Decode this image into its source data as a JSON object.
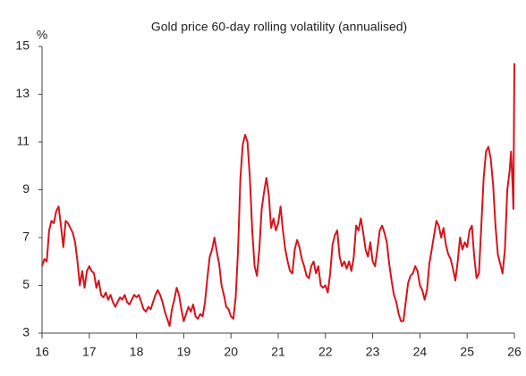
{
  "chart_data": {
    "type": "line",
    "title": "Gold price 60-day rolling volatility (annualised)",
    "y_label": "%",
    "color": "#d7141d",
    "xlim": [
      16,
      26
    ],
    "xticks": [
      16,
      17,
      18,
      19,
      20,
      21,
      22,
      23,
      24,
      25,
      26
    ],
    "ylim": [
      3,
      15
    ],
    "yticks": [
      3,
      5,
      7,
      9,
      11,
      13,
      15
    ],
    "x": [
      16.0,
      16.05,
      16.1,
      16.15,
      16.2,
      16.25,
      16.3,
      16.35,
      16.4,
      16.45,
      16.5,
      16.55,
      16.6,
      16.65,
      16.7,
      16.75,
      16.8,
      16.85,
      16.9,
      16.95,
      17.0,
      17.05,
      17.1,
      17.15,
      17.2,
      17.25,
      17.3,
      17.35,
      17.4,
      17.45,
      17.5,
      17.55,
      17.6,
      17.65,
      17.7,
      17.75,
      17.8,
      17.85,
      17.9,
      17.95,
      18.0,
      18.05,
      18.1,
      18.15,
      18.2,
      18.25,
      18.3,
      18.35,
      18.4,
      18.45,
      18.5,
      18.55,
      18.6,
      18.65,
      18.7,
      18.75,
      18.8,
      18.85,
      18.9,
      18.95,
      19.0,
      19.05,
      19.1,
      19.15,
      19.2,
      19.25,
      19.3,
      19.35,
      19.4,
      19.45,
      19.5,
      19.55,
      19.6,
      19.65,
      19.7,
      19.75,
      19.8,
      19.85,
      19.9,
      19.95,
      20.0,
      20.05,
      20.1,
      20.15,
      20.2,
      20.25,
      20.3,
      20.35,
      20.4,
      20.45,
      20.5,
      20.55,
      20.6,
      20.65,
      20.7,
      20.75,
      20.8,
      20.85,
      20.9,
      20.95,
      21.0,
      21.05,
      21.1,
      21.15,
      21.2,
      21.25,
      21.3,
      21.35,
      21.4,
      21.45,
      21.5,
      21.55,
      21.6,
      21.65,
      21.7,
      21.75,
      21.8,
      21.85,
      21.9,
      21.95,
      22.0,
      22.05,
      22.1,
      22.15,
      22.2,
      22.25,
      22.3,
      22.35,
      22.4,
      22.45,
      22.5,
      22.55,
      22.6,
      22.65,
      22.7,
      22.75,
      22.8,
      22.85,
      22.9,
      22.95,
      23.0,
      23.05,
      23.1,
      23.15,
      23.2,
      23.25,
      23.3,
      23.35,
      23.4,
      23.45,
      23.5,
      23.55,
      23.6,
      23.65,
      23.7,
      23.75,
      23.8,
      23.85,
      23.9,
      23.95,
      24.0,
      24.05,
      24.1,
      24.15,
      24.2,
      24.25,
      24.3,
      24.35,
      24.4,
      24.45,
      24.5,
      24.55,
      24.6,
      24.65,
      24.7,
      24.75,
      24.8,
      24.85,
      24.9,
      24.95,
      25.0,
      25.05,
      25.1,
      25.15,
      25.2,
      25.25,
      25.3,
      25.35,
      25.4,
      25.45,
      25.5,
      25.55,
      25.6,
      25.65,
      25.7,
      25.75,
      25.8,
      25.85,
      25.9,
      25.93,
      25.96,
      25.98,
      26.0
    ],
    "values": [
      5.8,
      6.1,
      6.0,
      7.3,
      7.7,
      7.6,
      8.1,
      8.3,
      7.5,
      6.6,
      7.7,
      7.6,
      7.4,
      7.2,
      6.8,
      6.0,
      5.0,
      5.6,
      4.9,
      5.6,
      5.8,
      5.6,
      5.5,
      4.9,
      5.2,
      4.6,
      4.5,
      4.7,
      4.4,
      4.6,
      4.3,
      4.1,
      4.3,
      4.5,
      4.4,
      4.6,
      4.3,
      4.2,
      4.4,
      4.6,
      4.5,
      4.6,
      4.3,
      4.0,
      3.9,
      4.1,
      4.0,
      4.3,
      4.6,
      4.8,
      4.6,
      4.3,
      3.9,
      3.6,
      3.3,
      4.0,
      4.4,
      4.9,
      4.6,
      4.0,
      3.5,
      3.8,
      4.1,
      3.9,
      4.2,
      3.7,
      3.6,
      3.8,
      3.7,
      4.3,
      5.3,
      6.2,
      6.5,
      7.0,
      6.4,
      5.9,
      5.0,
      4.6,
      4.1,
      4.0,
      3.7,
      3.6,
      4.5,
      6.5,
      9.5,
      10.9,
      11.3,
      11.0,
      9.5,
      7.3,
      5.8,
      5.4,
      6.5,
      8.2,
      8.9,
      9.5,
      8.8,
      7.4,
      7.8,
      7.3,
      7.6,
      8.3,
      7.3,
      6.5,
      6.0,
      5.6,
      5.5,
      6.5,
      6.9,
      6.6,
      6.1,
      5.8,
      5.4,
      5.3,
      5.8,
      6.0,
      5.5,
      5.8,
      5.0,
      4.9,
      5.0,
      4.7,
      5.5,
      6.7,
      7.1,
      7.3,
      6.2,
      5.8,
      6.0,
      5.7,
      6.0,
      5.6,
      6.2,
      7.5,
      7.3,
      7.8,
      7.2,
      6.5,
      6.2,
      6.8,
      6.0,
      5.8,
      6.5,
      7.3,
      7.5,
      7.2,
      6.8,
      5.9,
      5.2,
      4.6,
      4.3,
      3.8,
      3.5,
      3.5,
      4.3,
      5.1,
      5.4,
      5.5,
      5.8,
      5.6,
      5.0,
      4.8,
      4.4,
      4.8,
      5.9,
      6.5,
      7.1,
      7.7,
      7.5,
      7.0,
      7.4,
      6.7,
      6.3,
      6.1,
      5.7,
      5.2,
      6.0,
      7.0,
      6.5,
      6.8,
      6.6,
      7.3,
      7.5,
      6.2,
      5.3,
      5.5,
      7.5,
      9.5,
      10.6,
      10.8,
      10.3,
      9.2,
      7.5,
      6.3,
      5.9,
      5.5,
      6.5,
      9.0,
      9.8,
      10.6,
      9.3,
      8.2,
      14.3
    ]
  }
}
